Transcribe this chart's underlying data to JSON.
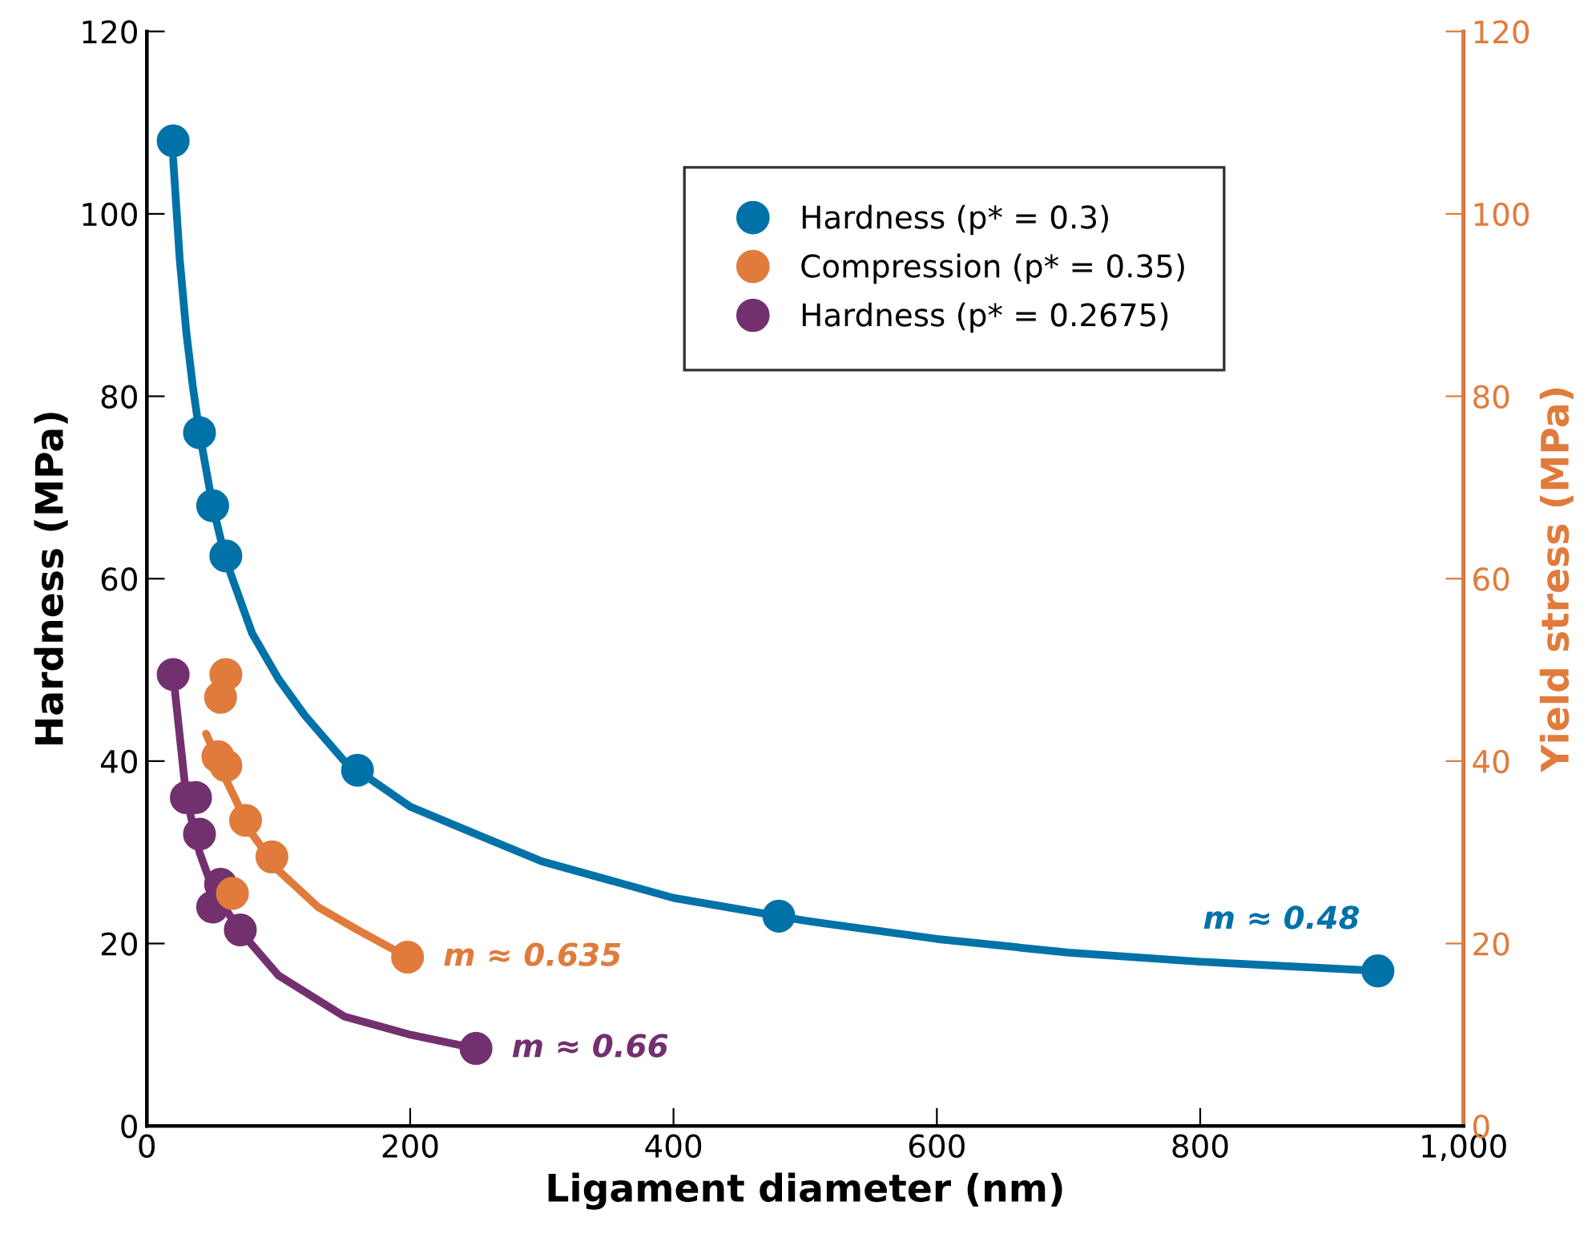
{
  "chart_data": {
    "type": "scatter",
    "xlabel": "Ligament diameter (nm)",
    "ylabel": "Hardness (MPa)",
    "y2label": "Yield stress (MPa)",
    "xlim": [
      0,
      1000
    ],
    "xticks": [
      0,
      200,
      400,
      600,
      800,
      {
        "value": 1000,
        "label": "1,000"
      }
    ],
    "ylim": [
      0,
      120
    ],
    "yticks": [
      0,
      20,
      40,
      60,
      80,
      100,
      120
    ],
    "y2lim": [
      0,
      120
    ],
    "y2ticks": [
      0,
      20,
      40,
      60,
      80,
      100,
      120
    ],
    "legend": "top right",
    "grid": false,
    "marker": "circle",
    "series": [
      {
        "name": "Hardness (p* = 0.3)",
        "color": "#0072a8",
        "x": [
          20,
          40,
          50,
          60,
          160,
          480,
          935
        ],
        "values": [
          108,
          76,
          68,
          62.5,
          39,
          23,
          17
        ]
      },
      {
        "name": "Compression (p* = 0.35)",
        "color": "#e07b3c",
        "axis": "y2",
        "x": [
          60,
          56,
          54,
          60,
          75,
          95,
          65,
          198
        ],
        "values": [
          49.5,
          47,
          40.5,
          39.5,
          33.5,
          29.5,
          25.5,
          18.5
        ]
      },
      {
        "name": "Hardness (p* = 0.2675)",
        "color": "#73306f",
        "x": [
          20,
          30,
          37,
          40,
          56,
          50,
          71,
          250
        ],
        "values": [
          49.5,
          36,
          36,
          32,
          26.5,
          24,
          21.5,
          8.5
        ]
      },
      {
        "type": "line",
        "marker": "none",
        "color": "#0072a8",
        "x": [
          20,
          25,
          30,
          35,
          40,
          50,
          60,
          70,
          80,
          100,
          120,
          150,
          200,
          250,
          300,
          400,
          500,
          600,
          700,
          800,
          935
        ],
        "values": [
          106,
          95,
          87,
          81,
          76,
          68,
          62,
          58,
          54,
          49,
          45,
          40,
          35,
          32,
          29,
          25,
          22.5,
          20.5,
          19,
          18,
          17
        ]
      },
      {
        "type": "line",
        "marker": "none",
        "color": "#e07b3c",
        "axis": "y2",
        "x": [
          45,
          60,
          80,
          100,
          130,
          160,
          198
        ],
        "values": [
          43,
          38,
          32,
          28,
          24,
          21.5,
          18.5
        ]
      },
      {
        "type": "line",
        "marker": "none",
        "color": "#73306f",
        "x": [
          20,
          30,
          40,
          50,
          70,
          100,
          150,
          200,
          250
        ],
        "values": [
          49.5,
          36,
          30,
          26,
          21.5,
          16.5,
          12,
          10,
          8.5
        ]
      }
    ],
    "annotations": [
      "m ≈ 0.48",
      "m ≈ 0.635",
      "m ≈ 0.66"
    ]
  }
}
